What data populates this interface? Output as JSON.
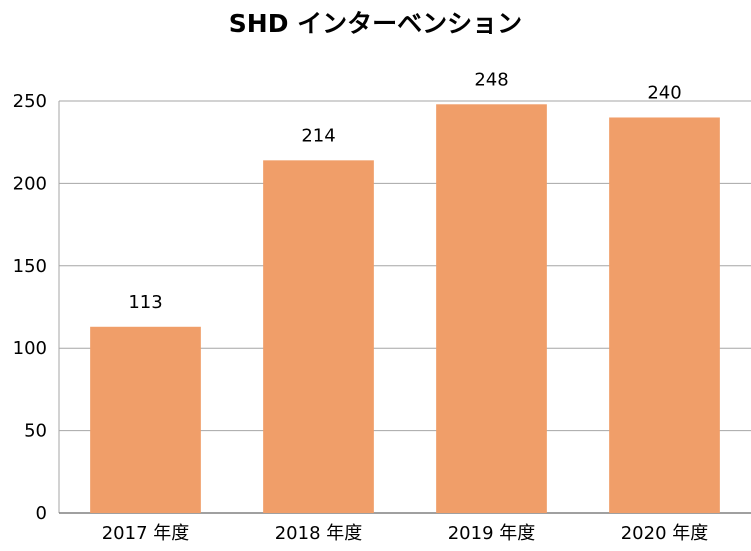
{
  "chart_data": {
    "type": "bar",
    "title": "SHD インターベンション",
    "categories": [
      "2017 年度",
      "2018 年度",
      "2019 年度",
      "2020 年度"
    ],
    "values": [
      113,
      214,
      248,
      240
    ],
    "data_labels": [
      "113",
      "214",
      "248",
      "240"
    ],
    "ylim": [
      0,
      250
    ],
    "yticks": [
      0,
      50,
      100,
      150,
      200,
      250
    ],
    "grid": true,
    "legend": "none",
    "bar_color": "#F09E69",
    "grid_color": "#A6A6A6"
  }
}
